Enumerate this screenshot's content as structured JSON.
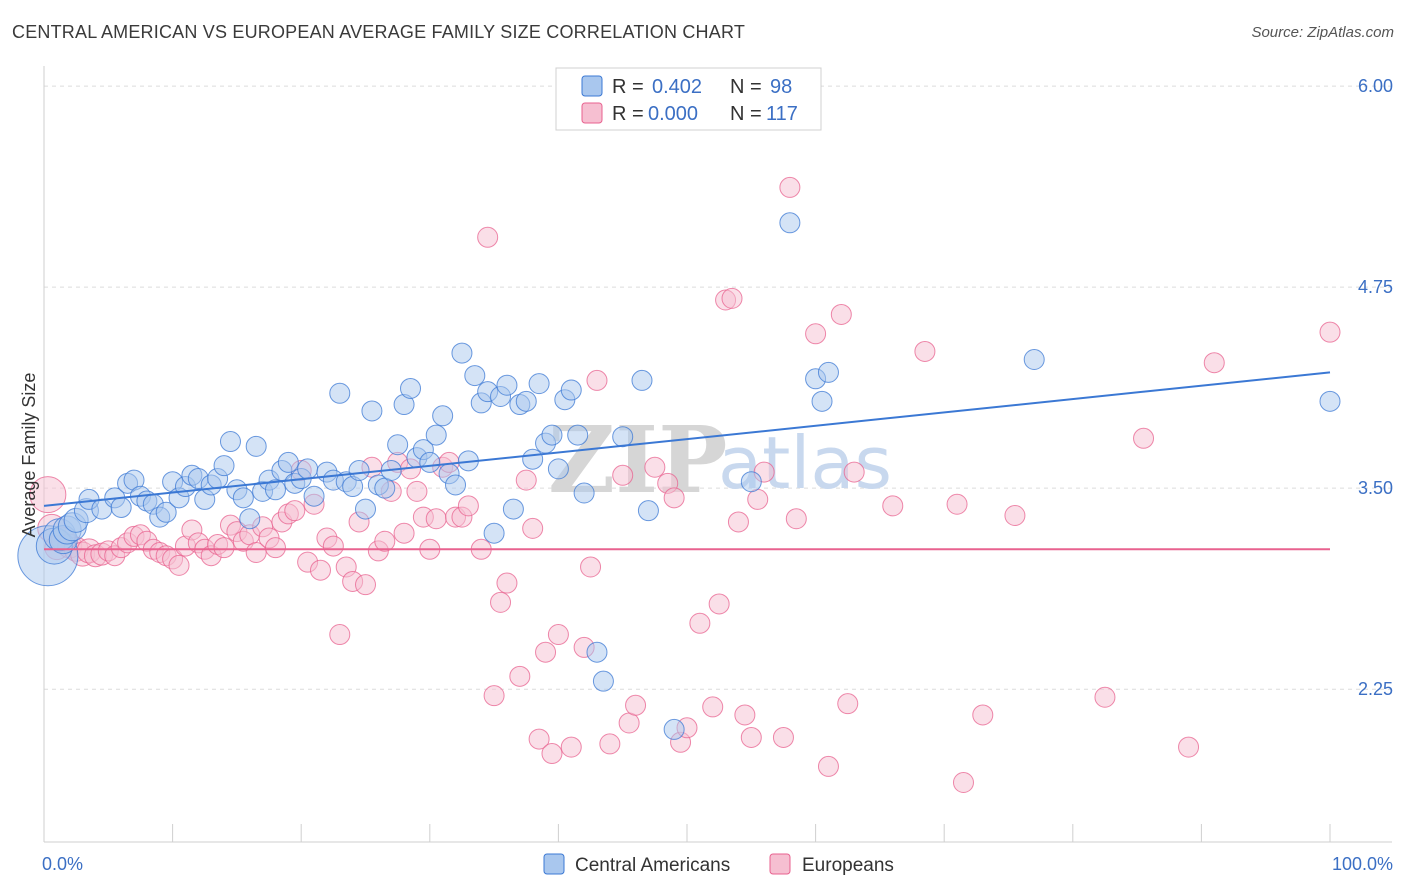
{
  "title": "CENTRAL AMERICAN VS EUROPEAN AVERAGE FAMILY SIZE CORRELATION CHART",
  "source": "Source: ZipAtlas.com",
  "watermark": {
    "part1": "ZIP",
    "part2": "atlas"
  },
  "legend_top": {
    "rows": [
      {
        "r_label": "R =",
        "r_value": "0.402",
        "n_label": "N =",
        "n_value": "98",
        "color": "#7aa6e0"
      },
      {
        "r_label": "R =",
        "r_value": "0.000",
        "n_label": "N =",
        "n_value": "117",
        "color": "#f0a3bd"
      }
    ]
  },
  "legend_bottom": [
    {
      "label": "Central Americans",
      "color": "#7aa6e0"
    },
    {
      "label": "Europeans",
      "color": "#f0a3bd"
    }
  ],
  "chart_data": {
    "type": "scatter",
    "title": "CENTRAL AMERICAN VS EUROPEAN AVERAGE FAMILY SIZE CORRELATION CHART",
    "xlabel": "",
    "ylabel": "Average Family Size",
    "xlim": [
      0,
      100
    ],
    "ylim": [
      1.3,
      6.1
    ],
    "x_tick_labels": [
      "0.0%",
      "100.0%"
    ],
    "y_ticks": [
      2.25,
      3.5,
      4.75,
      6.0
    ],
    "y_tick_labels": [
      "2.25",
      "3.50",
      "4.75",
      "6.00"
    ],
    "grid": "horizontal dashed",
    "legend_placement": "top-center",
    "colors": {
      "central": "#3b78d4",
      "european": "#e8628f",
      "central_fill": "#a9c7ee",
      "european_fill": "#f6bfd1"
    },
    "series": [
      {
        "name": "Central Americans",
        "trend": {
          "x": [
            0,
            100
          ],
          "y": [
            3.39,
            4.22
          ]
        },
        "points": [
          [
            0.3,
            3.08
          ],
          [
            0.8,
            3.14
          ],
          [
            1.2,
            3.21
          ],
          [
            1.5,
            3.18
          ],
          [
            1.8,
            3.24
          ],
          [
            2.2,
            3.26
          ],
          [
            2.5,
            3.3
          ],
          [
            3.3,
            3.36
          ],
          [
            3.5,
            3.43
          ],
          [
            4.5,
            3.37
          ],
          [
            5.5,
            3.44
          ],
          [
            6.0,
            3.38
          ],
          [
            6.5,
            3.53
          ],
          [
            7.0,
            3.55
          ],
          [
            7.5,
            3.45
          ],
          [
            8.0,
            3.42
          ],
          [
            8.5,
            3.4
          ],
          [
            9.0,
            3.32
          ],
          [
            9.5,
            3.35
          ],
          [
            10.0,
            3.54
          ],
          [
            10.5,
            3.44
          ],
          [
            11.0,
            3.51
          ],
          [
            11.5,
            3.58
          ],
          [
            12.0,
            3.56
          ],
          [
            12.5,
            3.43
          ],
          [
            13.0,
            3.52
          ],
          [
            13.5,
            3.56
          ],
          [
            14.0,
            3.64
          ],
          [
            14.5,
            3.79
          ],
          [
            15.0,
            3.49
          ],
          [
            15.5,
            3.44
          ],
          [
            16.0,
            3.31
          ],
          [
            16.5,
            3.76
          ],
          [
            17.0,
            3.48
          ],
          [
            17.5,
            3.55
          ],
          [
            18.0,
            3.49
          ],
          [
            18.5,
            3.61
          ],
          [
            19.0,
            3.66
          ],
          [
            19.5,
            3.53
          ],
          [
            20.0,
            3.56
          ],
          [
            20.5,
            3.62
          ],
          [
            21.0,
            3.45
          ],
          [
            22.0,
            3.6
          ],
          [
            22.5,
            3.55
          ],
          [
            23.0,
            4.09
          ],
          [
            23.5,
            3.54
          ],
          [
            24.0,
            3.51
          ],
          [
            24.5,
            3.61
          ],
          [
            25.0,
            3.37
          ],
          [
            25.5,
            3.98
          ],
          [
            26.0,
            3.52
          ],
          [
            26.5,
            3.5
          ],
          [
            27.0,
            3.61
          ],
          [
            27.5,
            3.77
          ],
          [
            28.0,
            4.02
          ],
          [
            28.5,
            4.12
          ],
          [
            29.0,
            3.69
          ],
          [
            29.5,
            3.74
          ],
          [
            30.0,
            3.66
          ],
          [
            30.5,
            3.83
          ],
          [
            31.0,
            3.95
          ],
          [
            31.5,
            3.59
          ],
          [
            32.0,
            3.52
          ],
          [
            32.5,
            4.34
          ],
          [
            33.0,
            3.67
          ],
          [
            33.5,
            4.2
          ],
          [
            34.0,
            4.03
          ],
          [
            34.5,
            4.1
          ],
          [
            35.0,
            3.22
          ],
          [
            35.5,
            4.07
          ],
          [
            36.0,
            4.14
          ],
          [
            36.5,
            3.37
          ],
          [
            37.0,
            4.02
          ],
          [
            37.5,
            4.04
          ],
          [
            38.0,
            3.68
          ],
          [
            38.5,
            4.15
          ],
          [
            39.0,
            3.78
          ],
          [
            39.5,
            3.83
          ],
          [
            40.0,
            3.62
          ],
          [
            40.5,
            4.05
          ],
          [
            41.0,
            4.11
          ],
          [
            41.5,
            3.83
          ],
          [
            42.0,
            3.47
          ],
          [
            43.0,
            2.48
          ],
          [
            43.5,
            2.3
          ],
          [
            45.0,
            3.82
          ],
          [
            46.5,
            4.17
          ],
          [
            47.0,
            3.36
          ],
          [
            49.0,
            2.0
          ],
          [
            55.0,
            3.54
          ],
          [
            58.0,
            5.15
          ],
          [
            60.0,
            4.18
          ],
          [
            60.5,
            4.04
          ],
          [
            61.0,
            4.22
          ],
          [
            77.0,
            4.3
          ],
          [
            100.0,
            4.04
          ]
        ],
        "sizes": [
          30,
          18,
          16,
          14,
          14,
          14,
          12,
          12,
          10,
          10,
          10,
          10,
          10,
          10,
          10,
          10,
          10,
          10,
          10,
          10,
          10,
          10,
          10,
          10,
          10,
          10,
          10,
          10,
          10,
          10,
          10,
          10,
          10,
          10,
          10,
          10,
          10,
          10,
          10,
          10,
          10,
          10,
          10,
          10,
          10,
          10,
          10,
          10,
          10,
          10,
          10,
          10,
          10,
          10,
          10,
          10,
          10,
          10,
          10,
          10,
          10,
          10,
          10,
          10,
          10,
          10,
          10,
          10,
          10,
          10,
          10,
          10,
          10,
          10,
          10,
          10,
          10,
          10,
          10,
          10,
          10,
          10,
          10,
          10,
          10,
          10,
          10,
          10,
          10,
          10,
          10,
          10,
          10,
          10,
          10,
          10,
          10,
          10
        ]
      },
      {
        "name": "Europeans",
        "trend": {
          "x": [
            0,
            100
          ],
          "y": [
            3.12,
            3.12
          ]
        },
        "points": [
          [
            0.3,
            3.46
          ],
          [
            0.6,
            3.25
          ],
          [
            1.0,
            3.13
          ],
          [
            1.5,
            3.18
          ],
          [
            2.0,
            3.14
          ],
          [
            2.5,
            3.12
          ],
          [
            3.0,
            3.09
          ],
          [
            3.5,
            3.11
          ],
          [
            4.0,
            3.08
          ],
          [
            4.5,
            3.09
          ],
          [
            5.0,
            3.11
          ],
          [
            5.5,
            3.08
          ],
          [
            6.0,
            3.13
          ],
          [
            6.5,
            3.16
          ],
          [
            7.0,
            3.2
          ],
          [
            7.5,
            3.21
          ],
          [
            8.0,
            3.17
          ],
          [
            8.5,
            3.12
          ],
          [
            9.0,
            3.1
          ],
          [
            9.5,
            3.08
          ],
          [
            10.0,
            3.06
          ],
          [
            10.5,
            3.02
          ],
          [
            11.0,
            3.14
          ],
          [
            11.5,
            3.24
          ],
          [
            12.0,
            3.16
          ],
          [
            12.5,
            3.12
          ],
          [
            13.0,
            3.08
          ],
          [
            13.5,
            3.15
          ],
          [
            14.0,
            3.13
          ],
          [
            14.5,
            3.27
          ],
          [
            15.0,
            3.23
          ],
          [
            15.5,
            3.17
          ],
          [
            16.0,
            3.21
          ],
          [
            16.5,
            3.1
          ],
          [
            17.0,
            3.26
          ],
          [
            17.5,
            3.19
          ],
          [
            18.0,
            3.13
          ],
          [
            18.5,
            3.29
          ],
          [
            19.0,
            3.34
          ],
          [
            19.5,
            3.36
          ],
          [
            20.0,
            3.61
          ],
          [
            20.5,
            3.04
          ],
          [
            21.0,
            3.4
          ],
          [
            21.5,
            2.99
          ],
          [
            22.0,
            3.19
          ],
          [
            22.5,
            3.14
          ],
          [
            23.0,
            2.59
          ],
          [
            23.5,
            3.01
          ],
          [
            24.0,
            2.92
          ],
          [
            24.5,
            3.29
          ],
          [
            25.0,
            2.9
          ],
          [
            25.5,
            3.63
          ],
          [
            26.0,
            3.11
          ],
          [
            26.5,
            3.17
          ],
          [
            27.0,
            3.48
          ],
          [
            27.5,
            3.66
          ],
          [
            28.0,
            3.22
          ],
          [
            28.5,
            3.62
          ],
          [
            29.0,
            3.48
          ],
          [
            29.5,
            3.32
          ],
          [
            30.0,
            3.12
          ],
          [
            30.5,
            3.31
          ],
          [
            31.0,
            3.63
          ],
          [
            31.5,
            3.66
          ],
          [
            32.0,
            3.32
          ],
          [
            32.5,
            3.32
          ],
          [
            33.0,
            3.39
          ],
          [
            34.0,
            3.12
          ],
          [
            34.5,
            5.06
          ],
          [
            35.0,
            2.21
          ],
          [
            35.5,
            2.79
          ],
          [
            36.0,
            2.91
          ],
          [
            37.0,
            2.33
          ],
          [
            37.5,
            3.55
          ],
          [
            38.0,
            3.25
          ],
          [
            38.5,
            1.94
          ],
          [
            39.0,
            2.48
          ],
          [
            39.5,
            1.85
          ],
          [
            40.0,
            2.59
          ],
          [
            41.0,
            1.89
          ],
          [
            42.0,
            2.51
          ],
          [
            42.5,
            3.01
          ],
          [
            43.0,
            4.17
          ],
          [
            44.0,
            1.91
          ],
          [
            45.0,
            3.58
          ],
          [
            45.5,
            2.04
          ],
          [
            46.0,
            2.15
          ],
          [
            47.5,
            3.63
          ],
          [
            48.5,
            3.53
          ],
          [
            49.0,
            3.44
          ],
          [
            49.5,
            1.92
          ],
          [
            50.0,
            2.01
          ],
          [
            51.0,
            2.66
          ],
          [
            52.0,
            2.14
          ],
          [
            52.5,
            2.78
          ],
          [
            53.0,
            4.67
          ],
          [
            53.5,
            4.68
          ],
          [
            54.0,
            3.29
          ],
          [
            54.5,
            2.09
          ],
          [
            55.0,
            1.95
          ],
          [
            55.5,
            3.43
          ],
          [
            56.0,
            3.6
          ],
          [
            57.5,
            1.95
          ],
          [
            58.0,
            5.37
          ],
          [
            58.5,
            3.31
          ],
          [
            60.0,
            4.46
          ],
          [
            61.0,
            1.77
          ],
          [
            62.0,
            4.58
          ],
          [
            62.5,
            2.16
          ],
          [
            63.0,
            3.6
          ],
          [
            66.0,
            3.39
          ],
          [
            68.5,
            4.35
          ],
          [
            71.0,
            3.4
          ],
          [
            71.5,
            1.67
          ],
          [
            73.0,
            2.09
          ],
          [
            75.5,
            3.33
          ],
          [
            82.5,
            2.2
          ],
          [
            85.5,
            3.81
          ],
          [
            89.0,
            1.89
          ],
          [
            91.0,
            4.28
          ],
          [
            100.0,
            4.47
          ]
        ],
        "sizes": [
          18,
          14,
          12,
          12,
          12,
          12,
          12,
          12,
          11,
          11,
          10,
          10,
          10,
          10,
          10,
          10,
          10,
          10,
          10,
          10,
          10,
          10,
          10,
          10,
          10,
          10,
          10,
          10,
          10,
          10,
          10,
          10,
          10,
          10,
          10,
          10,
          10,
          10,
          10,
          10,
          10,
          10,
          10,
          10,
          10,
          10,
          10,
          10,
          10,
          10,
          10,
          10,
          10,
          10,
          10,
          10,
          10,
          10,
          10,
          10,
          10,
          10,
          10,
          10,
          10,
          10,
          10,
          10,
          10,
          10,
          10,
          10,
          10,
          10,
          10,
          10,
          10,
          10,
          10,
          10,
          10,
          10,
          10,
          10,
          10,
          10,
          10,
          10,
          10,
          10,
          10,
          10,
          10,
          10,
          10,
          10,
          10,
          10,
          10,
          10,
          10,
          10,
          10,
          10,
          10,
          10,
          10,
          10,
          10,
          10,
          10,
          10,
          10,
          10,
          10,
          10,
          10
        ]
      }
    ]
  }
}
